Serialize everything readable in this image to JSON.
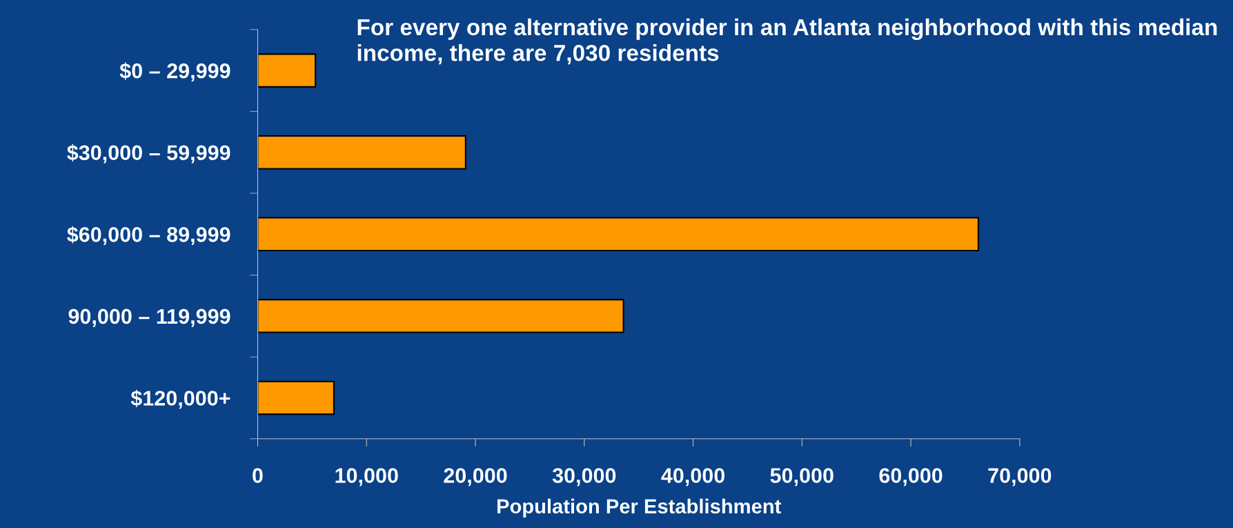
{
  "chart_data": {
    "type": "bar",
    "orientation": "horizontal",
    "title": "For every one alternative provider in an Atlanta neighborhood with this median income, there are 7,030 residents",
    "xlabel": "Population Per Establishment",
    "categories": [
      "$0 – 29,999",
      "$30,000 – 59,999",
      "$60,000 – 89,999",
      "90,000 – 119,999",
      "$120,000+"
    ],
    "values": [
      5300,
      19100,
      66200,
      33600,
      7000
    ],
    "color": "#ff9900",
    "xlim": [
      0,
      70000
    ],
    "xticks": [
      {
        "value": 0,
        "label": "0"
      },
      {
        "value": 10000,
        "label": "10,000"
      },
      {
        "value": 20000,
        "label": "20,000"
      },
      {
        "value": 30000,
        "label": "30,000"
      },
      {
        "value": 40000,
        "label": "40,000"
      },
      {
        "value": 50000,
        "label": "50,000"
      },
      {
        "value": 60000,
        "label": "60,000"
      },
      {
        "value": 70000,
        "label": "70,000"
      }
    ],
    "grid": false,
    "legend": false
  }
}
